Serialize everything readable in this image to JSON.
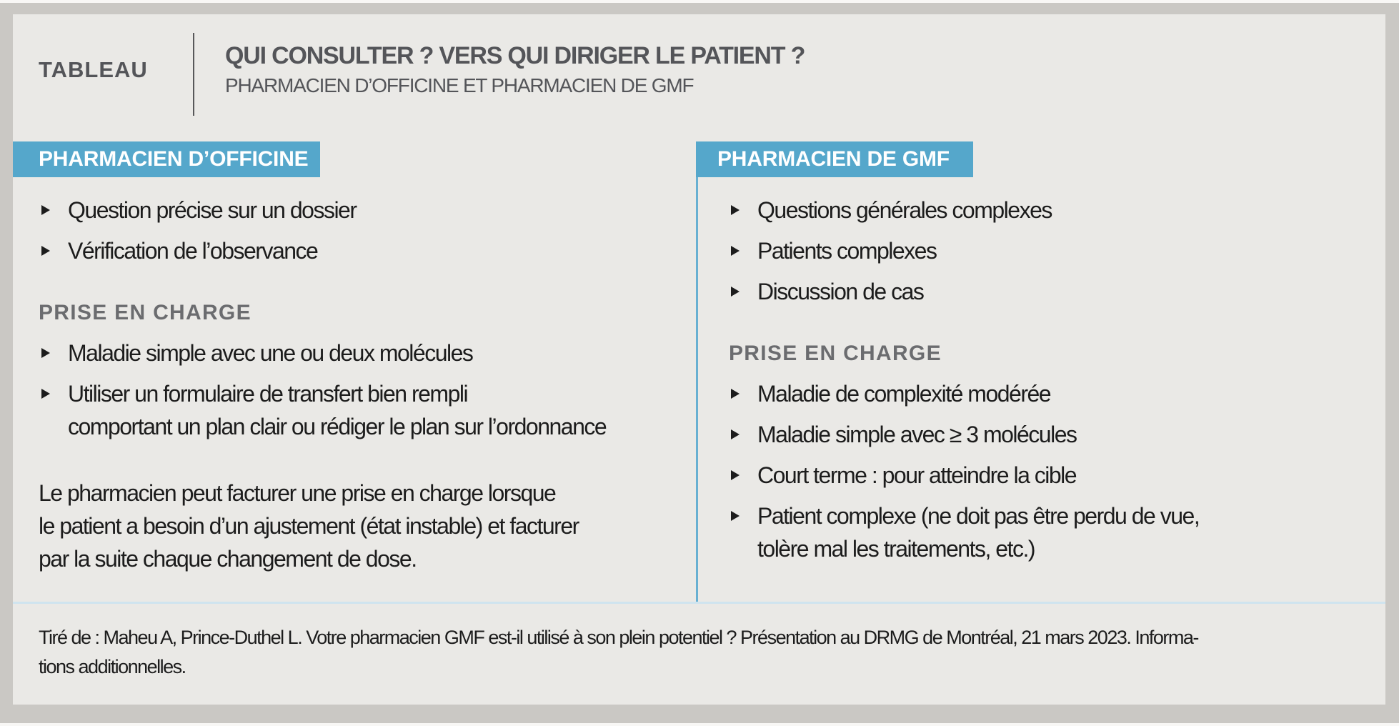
{
  "header": {
    "kicker": "TABLEAU",
    "title": "QUI CONSULTER ? VERS QUI DIRIGER LE PATIENT ?",
    "subtitle": "PHARMACIEN D’OFFICINE ET PHARMACIEN DE GMF"
  },
  "left_column": {
    "header": "PHARMACIEN D’OFFICINE",
    "bullets": [
      "Question précise sur un dossier",
      "Vérification de l’observance"
    ],
    "section_heading": "PRISE EN CHARGE",
    "section_bullets": [
      "Maladie simple avec une ou deux molécules",
      "Utiliser un formulaire de transfert bien rempli\ncomportant un plan clair ou rédiger le plan sur l’ordonnance"
    ],
    "note": "Le pharmacien peut facturer une prise en charge lorsque\nle patient a besoin d’un ajustement (état instable) et facturer\npar la suite chaque changement de dose."
  },
  "right_column": {
    "header": "PHARMACIEN DE GMF",
    "bullets": [
      "Questions générales complexes",
      "Patients complexes",
      "Discussion de cas"
    ],
    "section_heading": "PRISE EN CHARGE",
    "section_bullets": [
      "Maladie de complexité modérée",
      "Maladie simple avec ≥ 3 molécules",
      "Court terme : pour atteindre la cible",
      "Patient complexe (ne doit pas être perdu de vue,\ntolère mal les traitements, etc.)"
    ]
  },
  "footnote": "Tiré de : Maheu A, Prince-Duthel L. Votre pharmacien GMF est-il utilisé à son plein potentiel ? Présentation au DRMG de Montréal, 21 mars 2023. Informa-\ntions additionnelles.",
  "colors": {
    "accent_blue": "#55a7cb",
    "column_divider_blue": "#68b0d2",
    "footnote_rule_blue": "#cfe4ef",
    "frame_gray": "#cac8c4",
    "card_background": "#eae9e6",
    "title_gray": "#545559",
    "section_heading_gray": "#6b6c6f",
    "body_text": "#1c1c1c"
  }
}
